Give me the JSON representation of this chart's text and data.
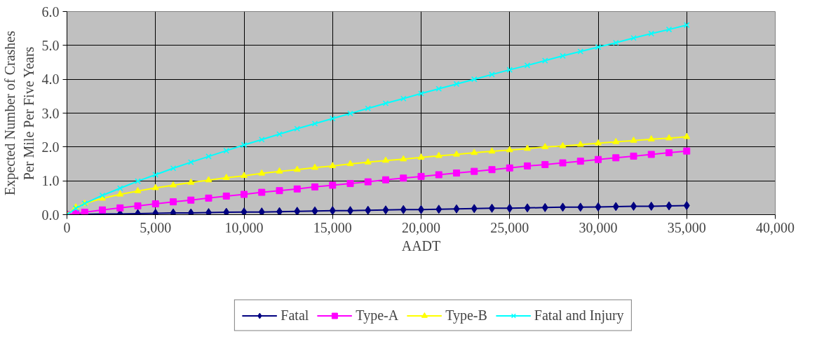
{
  "chart_data": {
    "type": "line",
    "xlabel": "AADT",
    "ylabel": "Expected Number of Crashes\nPer Mile Per Five Years",
    "x": [
      0,
      500,
      1000,
      2000,
      3000,
      4000,
      5000,
      6000,
      7000,
      8000,
      9000,
      10000,
      11000,
      12000,
      13000,
      14000,
      15000,
      16000,
      17000,
      18000,
      19000,
      20000,
      21000,
      22000,
      23000,
      24000,
      25000,
      26000,
      27000,
      28000,
      29000,
      30000,
      31000,
      32000,
      33000,
      34000,
      35000
    ],
    "series": [
      {
        "name": "Fatal",
        "color": "#000080",
        "marker": "diamond",
        "values": [
          0,
          0.0,
          0.01,
          0.02,
          0.02,
          0.03,
          0.04,
          0.05,
          0.05,
          0.06,
          0.07,
          0.08,
          0.08,
          0.09,
          0.1,
          0.11,
          0.12,
          0.12,
          0.13,
          0.14,
          0.15,
          0.15,
          0.16,
          0.17,
          0.18,
          0.19,
          0.19,
          0.2,
          0.21,
          0.22,
          0.22,
          0.23,
          0.24,
          0.25,
          0.25,
          0.26,
          0.27
        ]
      },
      {
        "name": "Type-A",
        "color": "#ff00ff",
        "marker": "square",
        "values": [
          0,
          0.04,
          0.07,
          0.14,
          0.2,
          0.26,
          0.32,
          0.38,
          0.43,
          0.49,
          0.55,
          0.6,
          0.66,
          0.71,
          0.76,
          0.82,
          0.87,
          0.92,
          0.97,
          1.03,
          1.08,
          1.13,
          1.18,
          1.23,
          1.28,
          1.33,
          1.38,
          1.44,
          1.48,
          1.53,
          1.58,
          1.63,
          1.68,
          1.73,
          1.78,
          1.83,
          1.88
        ]
      },
      {
        "name": "Type-B",
        "color": "#ffff00",
        "marker": "triangle",
        "values": [
          0,
          0.22,
          0.33,
          0.48,
          0.6,
          0.7,
          0.79,
          0.87,
          0.95,
          1.02,
          1.09,
          1.15,
          1.22,
          1.28,
          1.33,
          1.39,
          1.44,
          1.5,
          1.55,
          1.6,
          1.64,
          1.69,
          1.74,
          1.78,
          1.83,
          1.87,
          1.91,
          1.95,
          2.0,
          2.03,
          2.07,
          2.11,
          2.15,
          2.19,
          2.23,
          2.26,
          2.3
        ]
      },
      {
        "name": "Fatal and Injury",
        "color": "#00ffff",
        "marker": "cross",
        "values": [
          0,
          0.19,
          0.33,
          0.57,
          0.78,
          0.99,
          1.18,
          1.37,
          1.55,
          1.72,
          1.89,
          2.06,
          2.22,
          2.38,
          2.54,
          2.69,
          2.84,
          2.99,
          3.14,
          3.29,
          3.43,
          3.58,
          3.72,
          3.86,
          4.0,
          4.14,
          4.28,
          4.41,
          4.55,
          4.69,
          4.82,
          4.95,
          5.08,
          5.22,
          5.35,
          5.47,
          5.6
        ]
      }
    ],
    "xlim": [
      0,
      40000
    ],
    "xticks": [
      0,
      {
        "value": 5000,
        "label": "5,000"
      },
      {
        "value": 10000,
        "label": "10,000"
      },
      {
        "value": 15000,
        "label": "15,000"
      },
      {
        "value": 20000,
        "label": "20,000"
      },
      {
        "value": 25000,
        "label": "25,000"
      },
      {
        "value": 30000,
        "label": "30,000"
      },
      {
        "value": 35000,
        "label": "35,000"
      },
      {
        "value": 40000,
        "label": "40,000"
      }
    ],
    "ylim": [
      0,
      6
    ],
    "yticks": [
      {
        "value": 0,
        "label": "0.0"
      },
      {
        "value": 1,
        "label": "1.0"
      },
      {
        "value": 2,
        "label": "2.0"
      },
      {
        "value": 3,
        "label": "3.0"
      },
      {
        "value": 4,
        "label": "4.0"
      },
      {
        "value": 5,
        "label": "5.0"
      },
      {
        "value": 6,
        "label": "6.0"
      }
    ],
    "grid": true,
    "legend": "bottom",
    "line_style": "solid"
  }
}
